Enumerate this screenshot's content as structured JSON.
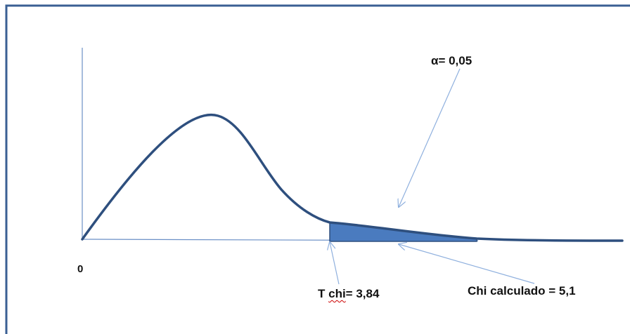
{
  "labels": {
    "origin": "0",
    "alpha": "α= 0,05",
    "t_chi_prefix": "T ",
    "t_chi_word": "chi",
    "t_chi_value": "= 3,84",
    "chi_calculado": "Chi calculado  = 5,1"
  },
  "colors": {
    "curve": "#2e4f7e",
    "shaded_region": "#4a7bbf",
    "axes": "#6a8fc6",
    "arrows": "#8fb0de",
    "frame": "#3a5f93"
  }
}
